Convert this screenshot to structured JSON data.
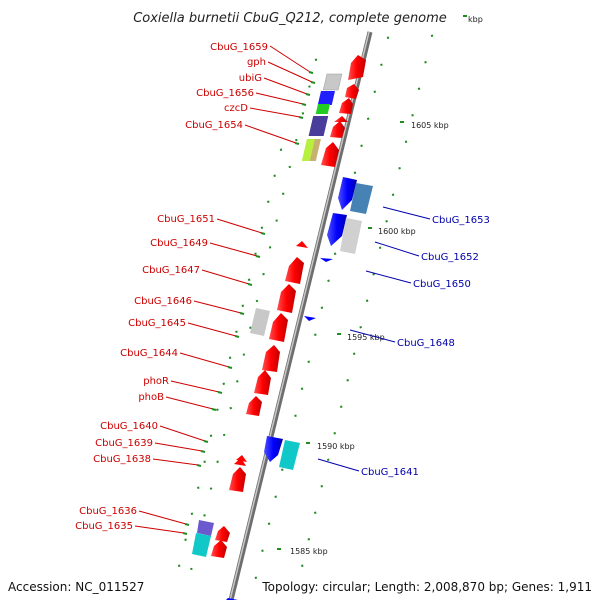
{
  "title": "Coxiella burnetii CbuG_Q212, complete genome",
  "accession": "Accession: NC_011527",
  "topology": "Topology: circular; Length: 2,008,870 bp; Genes: 1,911",
  "colors": {
    "backbone": "#8a8a8a",
    "forward_gene": "#ff0000",
    "reverse_gene": "#0000ff",
    "forward_label": "#cc0000",
    "reverse_label": "#0000aa",
    "tick": "#228b22"
  },
  "kbp_labels": [
    {
      "text": "kbp"
    },
    {
      "text": "1605 kbp"
    },
    {
      "text": "1600 kbp"
    },
    {
      "text": "1595 kbp"
    },
    {
      "text": "1590 kbp"
    },
    {
      "text": "1585 kbp"
    }
  ],
  "left_labels": [
    {
      "text": "CbuG_1659"
    },
    {
      "text": "gph"
    },
    {
      "text": "ubiG"
    },
    {
      "text": "CbuG_1656"
    },
    {
      "text": "czcD"
    },
    {
      "text": "CbuG_1654"
    },
    {
      "text": "CbuG_1651"
    },
    {
      "text": "CbuG_1649"
    },
    {
      "text": "CbuG_1647"
    },
    {
      "text": "CbuG_1646"
    },
    {
      "text": "CbuG_1645"
    },
    {
      "text": "CbuG_1644"
    },
    {
      "text": "phoR"
    },
    {
      "text": "phoB"
    },
    {
      "text": "CbuG_1640"
    },
    {
      "text": "CbuG_1639"
    },
    {
      "text": "CbuG_1638"
    },
    {
      "text": "CbuG_1636"
    },
    {
      "text": "CbuG_1635"
    }
  ],
  "right_labels": [
    {
      "text": "CbuG_1653"
    },
    {
      "text": "CbuG_1652"
    },
    {
      "text": "CbuG_1650"
    },
    {
      "text": "CbuG_1648"
    },
    {
      "text": "CbuG_1641"
    }
  ]
}
